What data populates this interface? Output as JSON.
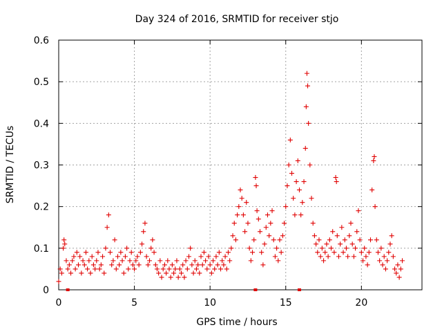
{
  "chart_data": {
    "type": "scatter",
    "title": "Day 324 of 2016, SRMTID for receiver stjo",
    "xlabel": "GPS time / hours",
    "ylabel": "SRMTID / TECUs",
    "xlim": [
      0,
      24
    ],
    "ylim": [
      0,
      0.6
    ],
    "grid": true,
    "marker": "+",
    "point_color": "#e00000",
    "x_ticks": [
      {
        "value": 0,
        "label": "0"
      },
      {
        "value": 5,
        "label": "5"
      },
      {
        "value": 10,
        "label": "10"
      },
      {
        "value": 15,
        "label": "15"
      },
      {
        "value": 20,
        "label": "20"
      }
    ],
    "y_ticks": [
      {
        "value": 0,
        "label": "0"
      },
      {
        "value": 0.1,
        "label": "0.1"
      },
      {
        "value": 0.2,
        "label": "0.2"
      },
      {
        "value": 0.3,
        "label": "0.3"
      },
      {
        "value": 0.4,
        "label": "0.4"
      },
      {
        "value": 0.5,
        "label": "0.5"
      },
      {
        "value": 0.6,
        "label": "0.6"
      }
    ],
    "baseline_markers_x": [
      0.6,
      13.0,
      15.9
    ],
    "series": [
      {
        "name": "SRMTID",
        "points": [
          [
            0.0,
            0.02
          ],
          [
            0.1,
            0.05
          ],
          [
            0.2,
            0.04
          ],
          [
            0.3,
            0.1
          ],
          [
            0.35,
            0.12
          ],
          [
            0.4,
            0.11
          ],
          [
            0.5,
            0.07
          ],
          [
            0.6,
            0.05
          ],
          [
            0.7,
            0.06
          ],
          [
            0.8,
            0.04
          ],
          [
            0.9,
            0.07
          ],
          [
            1.0,
            0.08
          ],
          [
            1.1,
            0.05
          ],
          [
            1.2,
            0.09
          ],
          [
            1.3,
            0.06
          ],
          [
            1.4,
            0.08
          ],
          [
            1.5,
            0.04
          ],
          [
            1.6,
            0.07
          ],
          [
            1.7,
            0.06
          ],
          [
            1.8,
            0.09
          ],
          [
            1.9,
            0.05
          ],
          [
            2.0,
            0.07
          ],
          [
            2.1,
            0.04
          ],
          [
            2.2,
            0.08
          ],
          [
            2.3,
            0.06
          ],
          [
            2.4,
            0.05
          ],
          [
            2.5,
            0.07
          ],
          [
            2.6,
            0.09
          ],
          [
            2.7,
            0.05
          ],
          [
            2.8,
            0.06
          ],
          [
            2.9,
            0.08
          ],
          [
            3.0,
            0.04
          ],
          [
            3.1,
            0.1
          ],
          [
            3.2,
            0.15
          ],
          [
            3.3,
            0.18
          ],
          [
            3.4,
            0.09
          ],
          [
            3.5,
            0.06
          ],
          [
            3.6,
            0.07
          ],
          [
            3.7,
            0.12
          ],
          [
            3.8,
            0.05
          ],
          [
            3.9,
            0.08
          ],
          [
            4.0,
            0.06
          ],
          [
            4.1,
            0.09
          ],
          [
            4.2,
            0.07
          ],
          [
            4.3,
            0.04
          ],
          [
            4.4,
            0.08
          ],
          [
            4.5,
            0.1
          ],
          [
            4.6,
            0.05
          ],
          [
            4.7,
            0.07
          ],
          [
            4.8,
            0.09
          ],
          [
            4.9,
            0.06
          ],
          [
            5.0,
            0.05
          ],
          [
            5.1,
            0.07
          ],
          [
            5.2,
            0.08
          ],
          [
            5.3,
            0.06
          ],
          [
            5.4,
            0.09
          ],
          [
            5.5,
            0.11
          ],
          [
            5.6,
            0.14
          ],
          [
            5.7,
            0.16
          ],
          [
            5.8,
            0.08
          ],
          [
            5.9,
            0.06
          ],
          [
            6.0,
            0.07
          ],
          [
            6.1,
            0.1
          ],
          [
            6.2,
            0.12
          ],
          [
            6.3,
            0.09
          ],
          [
            6.4,
            0.06
          ],
          [
            6.5,
            0.05
          ],
          [
            6.6,
            0.04
          ],
          [
            6.7,
            0.07
          ],
          [
            6.8,
            0.03
          ],
          [
            6.9,
            0.05
          ],
          [
            7.0,
            0.06
          ],
          [
            7.1,
            0.04
          ],
          [
            7.2,
            0.07
          ],
          [
            7.3,
            0.05
          ],
          [
            7.4,
            0.03
          ],
          [
            7.5,
            0.06
          ],
          [
            7.6,
            0.04
          ],
          [
            7.7,
            0.05
          ],
          [
            7.8,
            0.07
          ],
          [
            7.9,
            0.03
          ],
          [
            8.0,
            0.05
          ],
          [
            8.1,
            0.04
          ],
          [
            8.2,
            0.06
          ],
          [
            8.3,
            0.03
          ],
          [
            8.4,
            0.07
          ],
          [
            8.5,
            0.05
          ],
          [
            8.6,
            0.08
          ],
          [
            8.7,
            0.1
          ],
          [
            8.8,
            0.06
          ],
          [
            8.9,
            0.04
          ],
          [
            9.0,
            0.07
          ],
          [
            9.1,
            0.05
          ],
          [
            9.2,
            0.06
          ],
          [
            9.3,
            0.04
          ],
          [
            9.4,
            0.08
          ],
          [
            9.5,
            0.06
          ],
          [
            9.6,
            0.09
          ],
          [
            9.7,
            0.07
          ],
          [
            9.8,
            0.05
          ],
          [
            9.9,
            0.08
          ],
          [
            10.0,
            0.06
          ],
          [
            10.1,
            0.04
          ],
          [
            10.2,
            0.07
          ],
          [
            10.3,
            0.05
          ],
          [
            10.4,
            0.08
          ],
          [
            10.5,
            0.06
          ],
          [
            10.6,
            0.09
          ],
          [
            10.7,
            0.05
          ],
          [
            10.8,
            0.07
          ],
          [
            10.9,
            0.06
          ],
          [
            11.0,
            0.08
          ],
          [
            11.1,
            0.05
          ],
          [
            11.2,
            0.09
          ],
          [
            11.3,
            0.07
          ],
          [
            11.4,
            0.1
          ],
          [
            11.5,
            0.13
          ],
          [
            11.6,
            0.16
          ],
          [
            11.7,
            0.12
          ],
          [
            11.8,
            0.18
          ],
          [
            11.9,
            0.2
          ],
          [
            12.0,
            0.24
          ],
          [
            12.1,
            0.22
          ],
          [
            12.2,
            0.18
          ],
          [
            12.3,
            0.14
          ],
          [
            12.4,
            0.21
          ],
          [
            12.5,
            0.16
          ],
          [
            12.6,
            0.1
          ],
          [
            12.7,
            0.07
          ],
          [
            12.8,
            0.09
          ],
          [
            12.9,
            0.12
          ],
          [
            13.0,
            0.27
          ],
          [
            13.05,
            0.25
          ],
          [
            13.1,
            0.19
          ],
          [
            13.2,
            0.17
          ],
          [
            13.3,
            0.14
          ],
          [
            13.4,
            0.09
          ],
          [
            13.5,
            0.06
          ],
          [
            13.6,
            0.11
          ],
          [
            13.7,
            0.15
          ],
          [
            13.8,
            0.18
          ],
          [
            13.9,
            0.13
          ],
          [
            14.0,
            0.16
          ],
          [
            14.1,
            0.19
          ],
          [
            14.2,
            0.12
          ],
          [
            14.3,
            0.08
          ],
          [
            14.4,
            0.1
          ],
          [
            14.5,
            0.07
          ],
          [
            14.6,
            0.12
          ],
          [
            14.7,
            0.09
          ],
          [
            14.8,
            0.13
          ],
          [
            14.9,
            0.16
          ],
          [
            15.0,
            0.2
          ],
          [
            15.1,
            0.25
          ],
          [
            15.2,
            0.3
          ],
          [
            15.3,
            0.36
          ],
          [
            15.4,
            0.28
          ],
          [
            15.5,
            0.22
          ],
          [
            15.6,
            0.18
          ],
          [
            15.7,
            0.26
          ],
          [
            15.8,
            0.31
          ],
          [
            15.9,
            0.24
          ],
          [
            16.0,
            0.18
          ],
          [
            16.1,
            0.21
          ],
          [
            16.2,
            0.26
          ],
          [
            16.3,
            0.34
          ],
          [
            16.35,
            0.44
          ],
          [
            16.4,
            0.52
          ],
          [
            16.45,
            0.49
          ],
          [
            16.5,
            0.4
          ],
          [
            16.6,
            0.3
          ],
          [
            16.7,
            0.22
          ],
          [
            16.8,
            0.16
          ],
          [
            16.9,
            0.13
          ],
          [
            17.0,
            0.11
          ],
          [
            17.1,
            0.09
          ],
          [
            17.2,
            0.12
          ],
          [
            17.3,
            0.08
          ],
          [
            17.4,
            0.1
          ],
          [
            17.5,
            0.07
          ],
          [
            17.6,
            0.09
          ],
          [
            17.7,
            0.11
          ],
          [
            17.8,
            0.08
          ],
          [
            17.9,
            0.12
          ],
          [
            18.0,
            0.1
          ],
          [
            18.1,
            0.14
          ],
          [
            18.2,
            0.09
          ],
          [
            18.3,
            0.27
          ],
          [
            18.35,
            0.26
          ],
          [
            18.4,
            0.13
          ],
          [
            18.5,
            0.08
          ],
          [
            18.6,
            0.11
          ],
          [
            18.7,
            0.15
          ],
          [
            18.8,
            0.09
          ],
          [
            18.9,
            0.12
          ],
          [
            19.0,
            0.1
          ],
          [
            19.1,
            0.08
          ],
          [
            19.2,
            0.13
          ],
          [
            19.3,
            0.16
          ],
          [
            19.4,
            0.11
          ],
          [
            19.5,
            0.08
          ],
          [
            19.6,
            0.1
          ],
          [
            19.7,
            0.14
          ],
          [
            19.8,
            0.19
          ],
          [
            19.9,
            0.12
          ],
          [
            20.0,
            0.09
          ],
          [
            20.1,
            0.07
          ],
          [
            20.2,
            0.1
          ],
          [
            20.3,
            0.08
          ],
          [
            20.4,
            0.06
          ],
          [
            20.5,
            0.09
          ],
          [
            20.6,
            0.12
          ],
          [
            20.7,
            0.24
          ],
          [
            20.8,
            0.31
          ],
          [
            20.85,
            0.32
          ],
          [
            20.9,
            0.2
          ],
          [
            21.0,
            0.12
          ],
          [
            21.1,
            0.09
          ],
          [
            21.2,
            0.07
          ],
          [
            21.3,
            0.1
          ],
          [
            21.4,
            0.06
          ],
          [
            21.5,
            0.08
          ],
          [
            21.6,
            0.05
          ],
          [
            21.7,
            0.07
          ],
          [
            21.8,
            0.09
          ],
          [
            21.9,
            0.11
          ],
          [
            22.0,
            0.13
          ],
          [
            22.1,
            0.08
          ],
          [
            22.2,
            0.05
          ],
          [
            22.3,
            0.04
          ],
          [
            22.4,
            0.06
          ],
          [
            22.5,
            0.03
          ],
          [
            22.6,
            0.05
          ],
          [
            22.7,
            0.07
          ]
        ]
      }
    ]
  }
}
